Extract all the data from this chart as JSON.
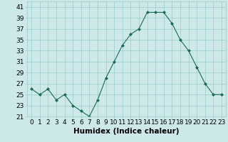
{
  "x": [
    0,
    1,
    2,
    3,
    4,
    5,
    6,
    7,
    8,
    9,
    10,
    11,
    12,
    13,
    14,
    15,
    16,
    17,
    18,
    19,
    20,
    21,
    22,
    23
  ],
  "y": [
    26,
    25,
    26,
    24,
    25,
    23,
    22,
    21,
    24,
    28,
    31,
    34,
    36,
    37,
    40,
    40,
    40,
    38,
    35,
    33,
    30,
    27,
    25,
    25
  ],
  "line_color": "#1a6b5a",
  "marker_color": "#1a6b5a",
  "bg_color": "#cce8e8",
  "grid_color": "#99cccc",
  "xlabel": "Humidex (Indice chaleur)",
  "ylim": [
    21,
    42
  ],
  "yticks": [
    21,
    23,
    25,
    27,
    29,
    31,
    33,
    35,
    37,
    39,
    41
  ],
  "xticks": [
    0,
    1,
    2,
    3,
    4,
    5,
    6,
    7,
    8,
    9,
    10,
    11,
    12,
    13,
    14,
    15,
    16,
    17,
    18,
    19,
    20,
    21,
    22,
    23
  ],
  "tick_fontsize": 6.5,
  "xlabel_fontsize": 7.5
}
